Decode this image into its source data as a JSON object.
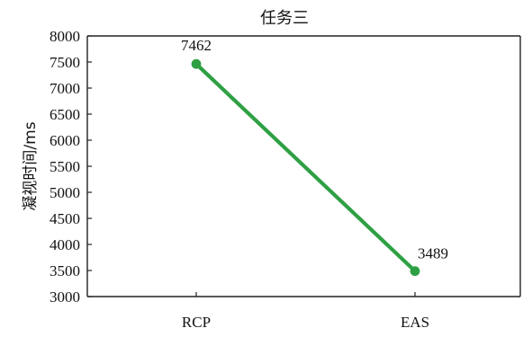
{
  "chart_data": {
    "type": "line",
    "title": "任务三",
    "ylabel": "凝视时间/ms",
    "xlabel": "",
    "categories": [
      "RCP",
      "EAS"
    ],
    "series": [
      {
        "values": [
          7462,
          3489
        ],
        "color": "#2ea043"
      }
    ],
    "ylim": [
      3000,
      8000
    ],
    "yticks": [
      3000,
      3500,
      4000,
      4500,
      5000,
      5500,
      6000,
      6500,
      7000,
      7500,
      8000
    ],
    "grid": false,
    "legend": "none",
    "data_labels": [
      "7462",
      "3489"
    ]
  }
}
